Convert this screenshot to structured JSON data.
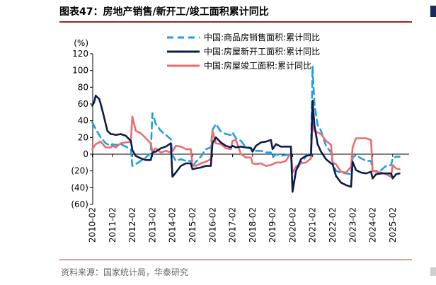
{
  "header": {
    "title": "图表47：房地产销售/新开工/竣工面积累计同比"
  },
  "footer": {
    "source": "资料来源：国家统计局，华泰研究"
  },
  "chart_data": {
    "type": "line",
    "ylabel": "(%)",
    "ylim": [
      -60,
      120
    ],
    "yticks": [
      -60,
      -40,
      -20,
      0,
      20,
      40,
      60,
      80,
      100,
      120
    ],
    "ytick_labels": [
      "(60)",
      "(40)",
      "(20)",
      "0",
      "20",
      "40",
      "60",
      "80",
      "100",
      "120"
    ],
    "xlim": [
      2010.1,
      2025.9
    ],
    "xticks": [
      2010.083,
      2011.083,
      2012.083,
      2013.083,
      2014.083,
      2015.083,
      2016.083,
      2017.083,
      2018.083,
      2019.083,
      2020.083,
      2021.083,
      2022.083,
      2023.083,
      2024.083,
      2025.083
    ],
    "xtick_labels": [
      "2010-02",
      "2011-02",
      "2012-02",
      "2013-02",
      "2014-02",
      "2015-02",
      "2016-02",
      "2017-02",
      "2018-02",
      "2019-02",
      "2020-02",
      "2021-02",
      "2022-02",
      "2023-02",
      "2024-02",
      "2025-02"
    ],
    "legend_position": "top-right",
    "series": [
      {
        "name": "中国:商品房销售面积:累计同比",
        "color": "#1fa0dc",
        "style": "dashed",
        "points": [
          [
            2010.08,
            38
          ],
          [
            2010.25,
            30
          ],
          [
            2010.5,
            20
          ],
          [
            2010.75,
            13
          ],
          [
            2011.0,
            10
          ],
          [
            2011.08,
            12
          ],
          [
            2011.25,
            11
          ],
          [
            2011.5,
            12
          ],
          [
            2011.75,
            9
          ],
          [
            2012.0,
            6
          ],
          [
            2012.08,
            -14
          ],
          [
            2012.25,
            -12
          ],
          [
            2012.5,
            -8
          ],
          [
            2012.75,
            -4
          ],
          [
            2013.0,
            1
          ],
          [
            2013.08,
            49
          ],
          [
            2013.25,
            36
          ],
          [
            2013.5,
            28
          ],
          [
            2013.75,
            23
          ],
          [
            2014.0,
            18
          ],
          [
            2014.08,
            -1
          ],
          [
            2014.25,
            -8
          ],
          [
            2014.5,
            -6
          ],
          [
            2014.75,
            -8
          ],
          [
            2015.0,
            -8
          ],
          [
            2015.08,
            -16
          ],
          [
            2015.25,
            -9
          ],
          [
            2015.5,
            -3
          ],
          [
            2015.75,
            6
          ],
          [
            2016.0,
            8
          ],
          [
            2016.08,
            29
          ],
          [
            2016.25,
            36
          ],
          [
            2016.5,
            27
          ],
          [
            2016.75,
            24
          ],
          [
            2017.0,
            23
          ],
          [
            2017.08,
            26
          ],
          [
            2017.25,
            19
          ],
          [
            2017.5,
            16
          ],
          [
            2017.75,
            8
          ],
          [
            2018.0,
            8
          ],
          [
            2018.08,
            4
          ],
          [
            2018.25,
            4
          ],
          [
            2018.5,
            4
          ],
          [
            2018.75,
            2
          ],
          [
            2019.0,
            2
          ],
          [
            2019.08,
            -4
          ],
          [
            2019.25,
            0
          ],
          [
            2019.5,
            -2
          ],
          [
            2019.75,
            -1
          ],
          [
            2020.0,
            0
          ],
          [
            2020.08,
            -40
          ],
          [
            2020.25,
            -20
          ],
          [
            2020.5,
            -10
          ],
          [
            2020.75,
            -3
          ],
          [
            2021.0,
            3
          ],
          [
            2021.08,
            105
          ],
          [
            2021.17,
            60
          ],
          [
            2021.33,
            35
          ],
          [
            2021.5,
            28
          ],
          [
            2021.75,
            10
          ],
          [
            2022.0,
            2
          ],
          [
            2022.08,
            -10
          ],
          [
            2022.25,
            -20
          ],
          [
            2022.5,
            -22
          ],
          [
            2022.75,
            -23
          ],
          [
            2023.0,
            -24
          ],
          [
            2023.08,
            -4
          ],
          [
            2023.25,
            -1
          ],
          [
            2023.5,
            -5
          ],
          [
            2023.75,
            -8
          ],
          [
            2024.0,
            -8
          ],
          [
            2024.08,
            -20
          ],
          [
            2024.25,
            -20
          ],
          [
            2024.5,
            -19
          ],
          [
            2024.75,
            -14
          ],
          [
            2025.0,
            -13
          ],
          [
            2025.08,
            -5
          ],
          [
            2025.25,
            -3
          ],
          [
            2025.42,
            -3
          ]
        ]
      },
      {
        "name": "中国:房屋新开工面积:累计同比",
        "color": "#0d1b4b",
        "style": "solid",
        "points": [
          [
            2010.08,
            58
          ],
          [
            2010.17,
            62
          ],
          [
            2010.25,
            70
          ],
          [
            2010.33,
            68
          ],
          [
            2010.42,
            66
          ],
          [
            2010.5,
            60
          ],
          [
            2010.67,
            44
          ],
          [
            2010.83,
            28
          ],
          [
            2011.0,
            24
          ],
          [
            2011.08,
            24
          ],
          [
            2011.25,
            23
          ],
          [
            2011.5,
            24
          ],
          [
            2011.75,
            22
          ],
          [
            2012.0,
            16
          ],
          [
            2012.08,
            5
          ],
          [
            2012.25,
            -2
          ],
          [
            2012.5,
            -5
          ],
          [
            2012.75,
            -7
          ],
          [
            2013.0,
            -7
          ],
          [
            2013.08,
            2
          ],
          [
            2013.25,
            3
          ],
          [
            2013.5,
            7
          ],
          [
            2013.75,
            9
          ],
          [
            2014.0,
            13
          ],
          [
            2014.08,
            -27
          ],
          [
            2014.25,
            -22
          ],
          [
            2014.5,
            -14
          ],
          [
            2014.75,
            -11
          ],
          [
            2015.0,
            -11
          ],
          [
            2015.08,
            -18
          ],
          [
            2015.25,
            -17
          ],
          [
            2015.5,
            -16
          ],
          [
            2015.75,
            -14
          ],
          [
            2016.0,
            -14
          ],
          [
            2016.08,
            13
          ],
          [
            2016.25,
            20
          ],
          [
            2016.5,
            14
          ],
          [
            2016.75,
            10
          ],
          [
            2017.0,
            8
          ],
          [
            2017.08,
            10
          ],
          [
            2017.25,
            8
          ],
          [
            2017.5,
            9
          ],
          [
            2017.75,
            8
          ],
          [
            2018.0,
            7
          ],
          [
            2018.08,
            3
          ],
          [
            2018.25,
            10
          ],
          [
            2018.5,
            14
          ],
          [
            2018.75,
            15
          ],
          [
            2019.0,
            17
          ],
          [
            2019.08,
            6
          ],
          [
            2019.25,
            12
          ],
          [
            2019.5,
            9
          ],
          [
            2019.75,
            9
          ],
          [
            2020.0,
            9
          ],
          [
            2020.08,
            -45
          ],
          [
            2020.25,
            -20
          ],
          [
            2020.5,
            -6
          ],
          [
            2020.75,
            -2
          ],
          [
            2021.0,
            -1
          ],
          [
            2021.08,
            64
          ],
          [
            2021.17,
            35
          ],
          [
            2021.33,
            12
          ],
          [
            2021.5,
            3
          ],
          [
            2021.75,
            -6
          ],
          [
            2022.0,
            -11
          ],
          [
            2022.08,
            -12
          ],
          [
            2022.25,
            -26
          ],
          [
            2022.5,
            -34
          ],
          [
            2022.75,
            -37
          ],
          [
            2023.0,
            -39
          ],
          [
            2023.08,
            -9
          ],
          [
            2023.25,
            -19
          ],
          [
            2023.5,
            -22
          ],
          [
            2023.75,
            -23
          ],
          [
            2024.0,
            -21
          ],
          [
            2024.08,
            -29
          ],
          [
            2024.25,
            -24
          ],
          [
            2024.5,
            -23
          ],
          [
            2024.75,
            -23
          ],
          [
            2025.0,
            -23
          ],
          [
            2025.08,
            -29
          ],
          [
            2025.25,
            -24
          ],
          [
            2025.42,
            -23
          ]
        ]
      },
      {
        "name": "中国:房屋竣工面积:累计同比",
        "color": "#ee6b6e",
        "style": "solid",
        "points": [
          [
            2010.08,
            6
          ],
          [
            2010.25,
            12
          ],
          [
            2010.5,
            15
          ],
          [
            2010.75,
            8
          ],
          [
            2011.0,
            8
          ],
          [
            2011.08,
            10
          ],
          [
            2011.25,
            8
          ],
          [
            2011.5,
            13
          ],
          [
            2011.75,
            14
          ],
          [
            2012.0,
            15
          ],
          [
            2012.08,
            45
          ],
          [
            2012.25,
            28
          ],
          [
            2012.5,
            25
          ],
          [
            2012.75,
            19
          ],
          [
            2013.0,
            13
          ],
          [
            2013.08,
            3
          ],
          [
            2013.25,
            7
          ],
          [
            2013.5,
            2
          ],
          [
            2013.75,
            4
          ],
          [
            2014.0,
            2
          ],
          [
            2014.08,
            3
          ],
          [
            2014.25,
            10
          ],
          [
            2014.5,
            9
          ],
          [
            2014.75,
            6
          ],
          [
            2015.0,
            6
          ],
          [
            2015.08,
            -13
          ],
          [
            2015.25,
            -14
          ],
          [
            2015.5,
            -11
          ],
          [
            2015.75,
            -9
          ],
          [
            2016.0,
            -6
          ],
          [
            2016.08,
            28
          ],
          [
            2016.25,
            13
          ],
          [
            2016.5,
            12
          ],
          [
            2016.75,
            7
          ],
          [
            2017.0,
            6
          ],
          [
            2017.08,
            16
          ],
          [
            2017.25,
            17
          ],
          [
            2017.5,
            0
          ],
          [
            2017.75,
            -4
          ],
          [
            2018.0,
            -4
          ],
          [
            2018.08,
            -11
          ],
          [
            2018.25,
            -12
          ],
          [
            2018.5,
            -11
          ],
          [
            2018.75,
            -14
          ],
          [
            2019.0,
            -13
          ],
          [
            2019.08,
            -12
          ],
          [
            2019.25,
            -10
          ],
          [
            2019.5,
            -10
          ],
          [
            2019.75,
            -8
          ],
          [
            2020.0,
            2
          ],
          [
            2020.08,
            -22
          ],
          [
            2020.25,
            -15
          ],
          [
            2020.5,
            -11
          ],
          [
            2020.75,
            -10
          ],
          [
            2021.0,
            -5
          ],
          [
            2021.08,
            40
          ],
          [
            2021.17,
            28
          ],
          [
            2021.33,
            26
          ],
          [
            2021.5,
            24
          ],
          [
            2021.75,
            16
          ],
          [
            2022.0,
            11
          ],
          [
            2022.08,
            -10
          ],
          [
            2022.25,
            -12
          ],
          [
            2022.5,
            -21
          ],
          [
            2022.75,
            -22
          ],
          [
            2023.0,
            -15
          ],
          [
            2023.08,
            8
          ],
          [
            2023.25,
            19
          ],
          [
            2023.5,
            19
          ],
          [
            2023.75,
            19
          ],
          [
            2024.0,
            17
          ],
          [
            2024.08,
            -20
          ],
          [
            2024.25,
            -21
          ],
          [
            2024.5,
            -22
          ],
          [
            2024.75,
            -24
          ],
          [
            2025.0,
            -27
          ],
          [
            2025.08,
            -13
          ],
          [
            2025.25,
            -17
          ],
          [
            2025.42,
            -18
          ]
        ]
      }
    ]
  }
}
